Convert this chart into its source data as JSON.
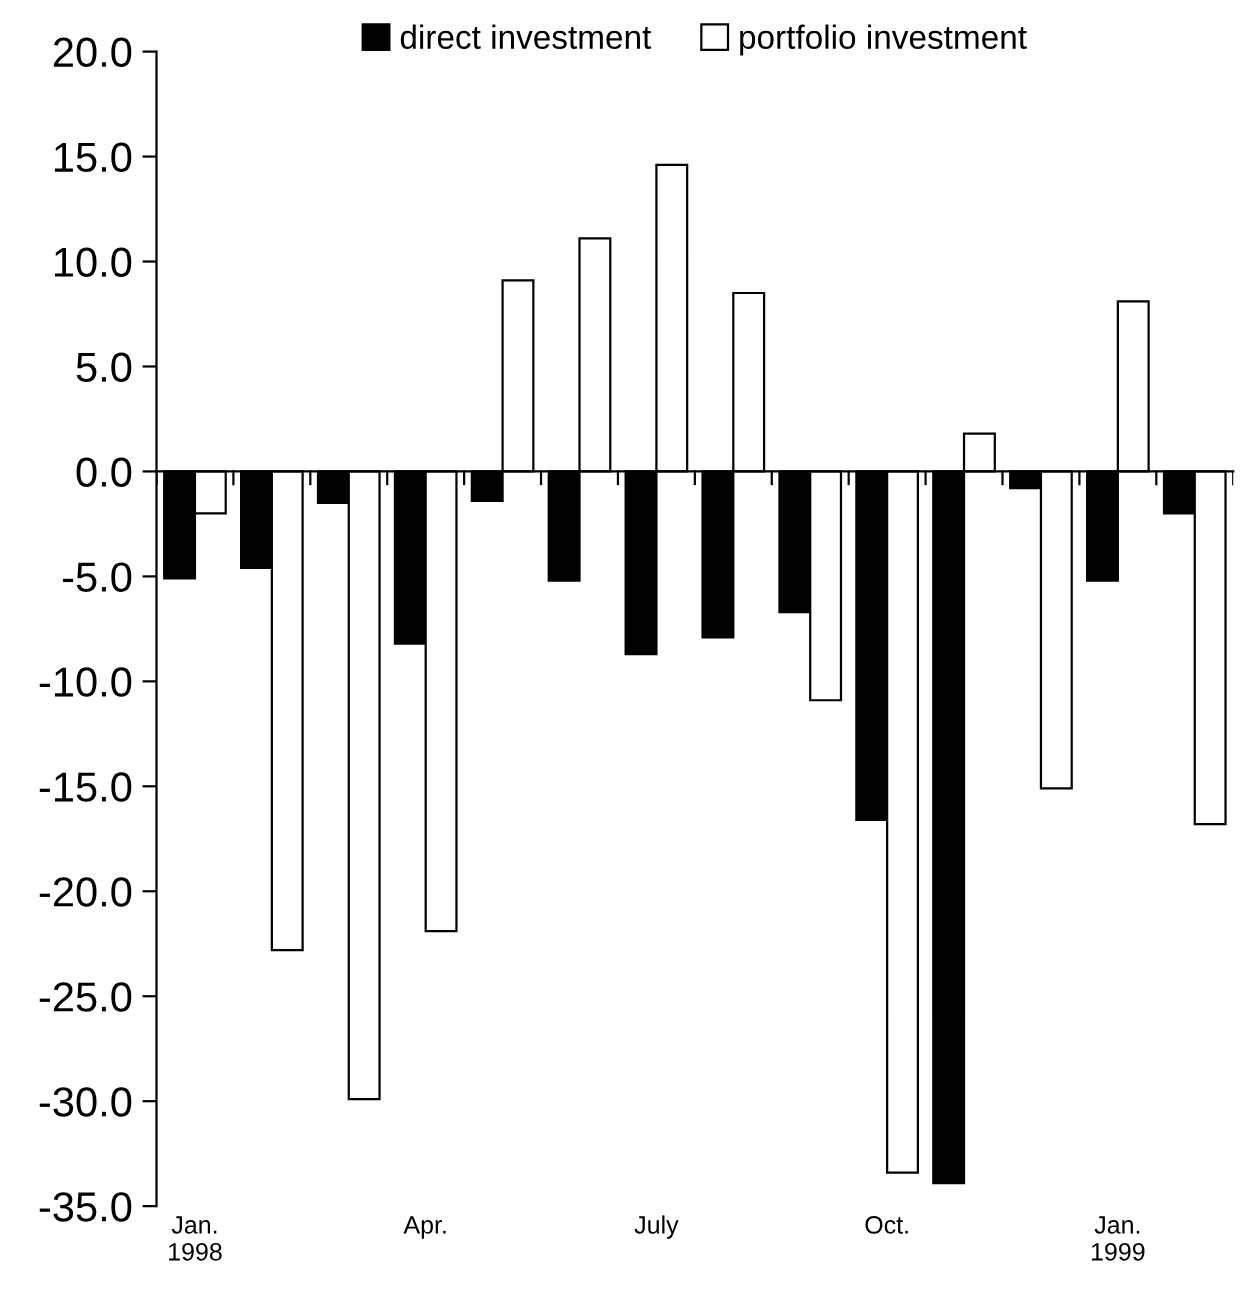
{
  "chart_data": {
    "type": "bar",
    "categories": [
      "Jan.\n1998",
      null,
      null,
      "Apr.",
      null,
      null,
      "July",
      null,
      null,
      "Oct.",
      null,
      null,
      "Jan.\n1999",
      null
    ],
    "series": [
      {
        "name": "direct investment",
        "color": "#000000",
        "values": [
          -5.1,
          -4.6,
          -1.5,
          -8.2,
          -1.4,
          -5.2,
          -8.7,
          -7.9,
          -6.7,
          -16.6,
          -33.9,
          -0.8,
          -5.2,
          -2.0
        ]
      },
      {
        "name": "portfolio investment",
        "color": "#ffffff",
        "values": [
          -2.0,
          -22.8,
          -29.9,
          -21.9,
          9.1,
          11.1,
          14.6,
          8.5,
          -10.9,
          -33.4,
          1.8,
          -15.1,
          8.1,
          -16.8
        ]
      }
    ],
    "ylim": [
      -35,
      20
    ],
    "yticks": [
      {
        "value": -35,
        "label": "-35.0"
      },
      {
        "value": -30,
        "label": "-30.0"
      },
      {
        "value": -25,
        "label": "-25.0"
      },
      {
        "value": -20,
        "label": "-20.0"
      },
      {
        "value": -15,
        "label": "-15.0"
      },
      {
        "value": -10,
        "label": "-10.0"
      },
      {
        "value": -5,
        "label": "-5.0"
      },
      {
        "value": 0,
        "label": "0.0"
      },
      {
        "value": 5,
        "label": "5.0"
      },
      {
        "value": 10,
        "label": "10.0"
      },
      {
        "value": 15,
        "label": "15.0"
      },
      {
        "value": 20,
        "label": "20.0"
      }
    ],
    "legend": "top"
  }
}
